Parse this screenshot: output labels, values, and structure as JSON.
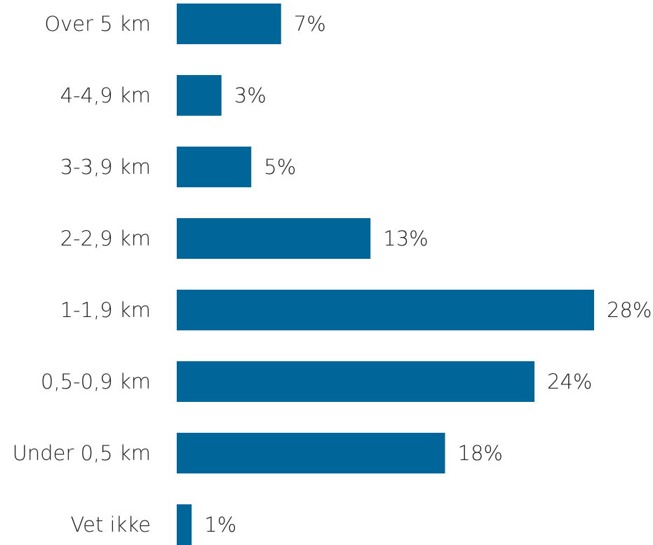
{
  "chart_data": {
    "type": "barh",
    "categories": [
      "Over 5 km",
      "4-4,9 km",
      "3-3,9 km",
      "2-2,9 km",
      "1-1,9 km",
      "0,5-0,9 km",
      "Under 0,5 km",
      "Vet ikke"
    ],
    "values": [
      7,
      3,
      5,
      13,
      28,
      24,
      18,
      1
    ],
    "value_labels": [
      "7%",
      "3%",
      "5%",
      "13%",
      "28%",
      "24%",
      "18%",
      "1%"
    ],
    "color": "#006699"
  }
}
